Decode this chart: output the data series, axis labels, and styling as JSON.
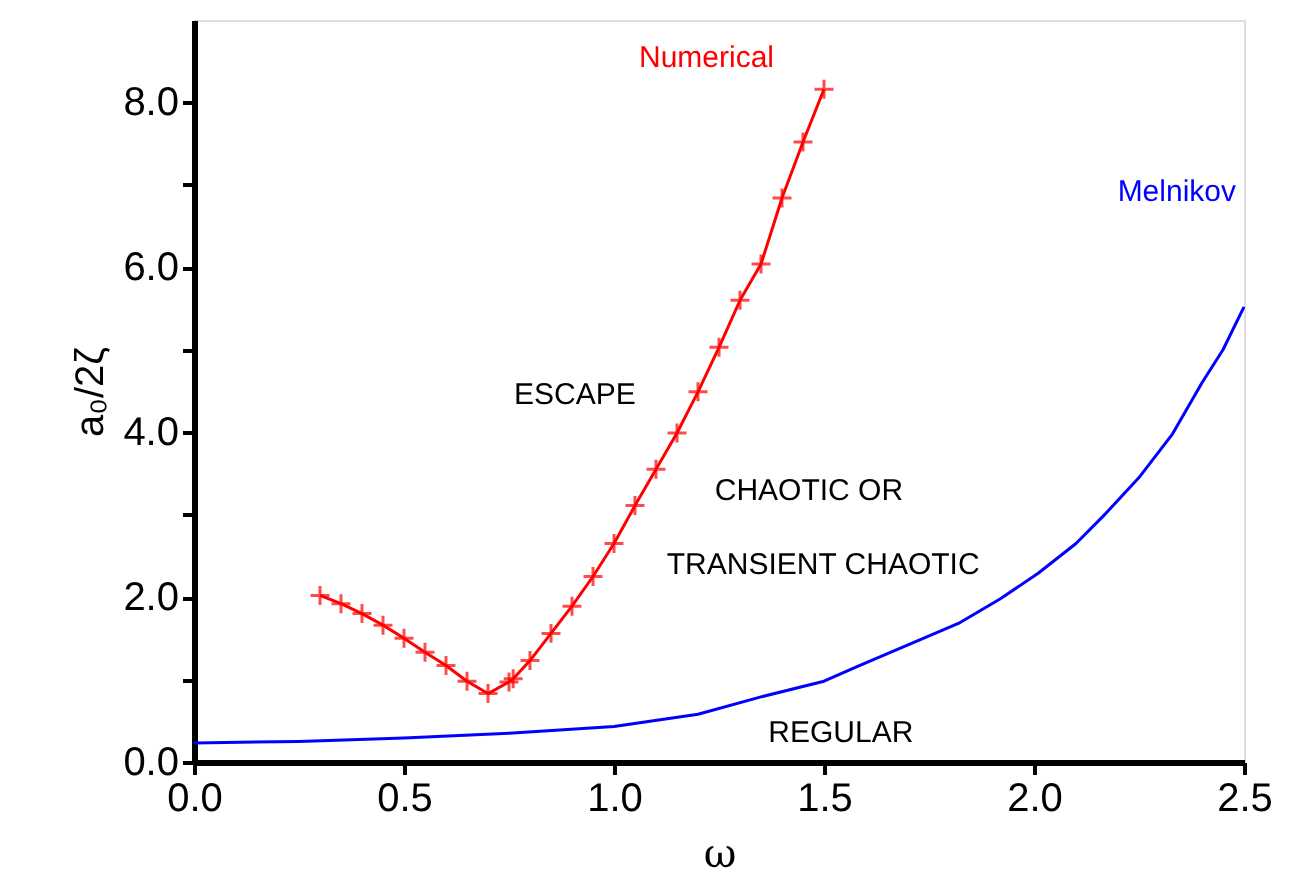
{
  "chart_data": {
    "type": "line",
    "xlabel": "ω",
    "ylabel": "a₀/2ζ",
    "xlim": [
      0,
      2.5
    ],
    "ylim": [
      0,
      9
    ],
    "xticks": [
      {
        "value": 0,
        "label": "0.0"
      },
      {
        "value": 0.5,
        "label": "0.5"
      },
      {
        "value": 1,
        "label": "1.0"
      },
      {
        "value": 1.5,
        "label": "1.5"
      },
      {
        "value": 2,
        "label": "2.0"
      },
      {
        "value": 2.5,
        "label": "2.5"
      }
    ],
    "yticks": [
      {
        "value": 0,
        "label": "0.0"
      },
      {
        "value": 1,
        "label": null
      },
      {
        "value": 2,
        "label": "2.0"
      },
      {
        "value": 3,
        "label": null
      },
      {
        "value": 4,
        "label": "4.0"
      },
      {
        "value": 5,
        "label": null
      },
      {
        "value": 6,
        "label": "6.0"
      },
      {
        "value": 7,
        "label": null
      },
      {
        "value": 8,
        "label": "8.0"
      }
    ],
    "grid": false,
    "line_style": "solid",
    "series": [
      {
        "name": "Numerical",
        "color": "#ff0000",
        "marker": "cross",
        "x": [
          0.3,
          0.35,
          0.4,
          0.45,
          0.5,
          0.55,
          0.6,
          0.65,
          0.7,
          0.75,
          0.76,
          0.8,
          0.85,
          0.9,
          0.95,
          1.0,
          1.05,
          1.1,
          1.15,
          1.2,
          1.25,
          1.3,
          1.35,
          1.4,
          1.45,
          1.5
        ],
        "values": [
          2.02,
          1.92,
          1.8,
          1.66,
          1.5,
          1.33,
          1.17,
          0.98,
          0.83,
          0.97,
          1.01,
          1.23,
          1.56,
          1.89,
          2.25,
          2.65,
          3.11,
          3.55,
          3.99,
          4.49,
          5.03,
          5.6,
          6.04,
          6.84,
          7.52,
          8.16
        ]
      },
      {
        "name": "Melnikov",
        "color": "#0000ff",
        "marker": "none",
        "x": [
          0,
          0.25,
          0.5,
          0.75,
          1.0,
          1.2,
          1.35,
          1.5,
          1.58,
          1.7,
          1.82,
          1.92,
          2.01,
          2.1,
          2.17,
          2.25,
          2.33,
          2.4,
          2.45,
          2.5
        ],
        "values": [
          0.23,
          0.25,
          0.29,
          0.35,
          0.43,
          0.58,
          0.79,
          0.98,
          1.16,
          1.42,
          1.68,
          1.98,
          2.29,
          2.65,
          3.01,
          3.45,
          3.98,
          4.6,
          5.0,
          5.52
        ]
      }
    ],
    "annotations": [
      "ESCAPE",
      "CHAOTIC OR",
      "TRANSIENT CHAOTIC",
      "REGULAR"
    ]
  }
}
